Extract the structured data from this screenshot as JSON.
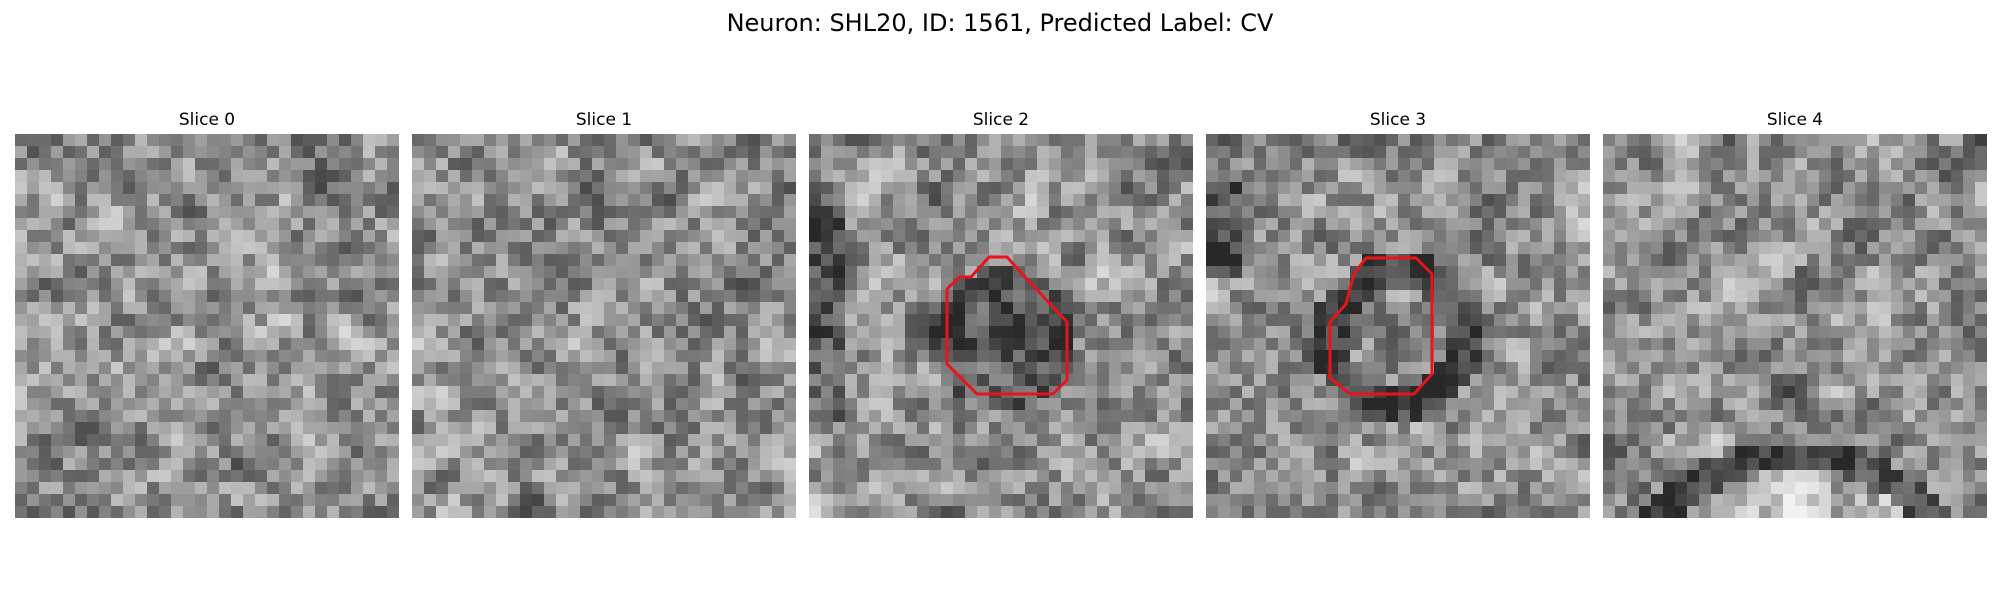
{
  "figure": {
    "title": "Neuron: SHL20, ID: 1561, Predicted Label: CV"
  },
  "panels": [
    {
      "title": "Slice 0",
      "seed": 11,
      "has_outline": false,
      "pattern": "noise"
    },
    {
      "title": "Slice 1",
      "seed": 23,
      "has_outline": false,
      "pattern": "noise"
    },
    {
      "title": "Slice 2",
      "seed": 37,
      "has_outline": true,
      "pattern": "blob"
    },
    {
      "title": "Slice 3",
      "seed": 53,
      "has_outline": true,
      "pattern": "ring"
    },
    {
      "title": "Slice 4",
      "seed": 71,
      "has_outline": false,
      "pattern": "arc"
    }
  ],
  "colors": {
    "outline": "#e8141b",
    "background": "#ffffff"
  },
  "grid_size": 32
}
